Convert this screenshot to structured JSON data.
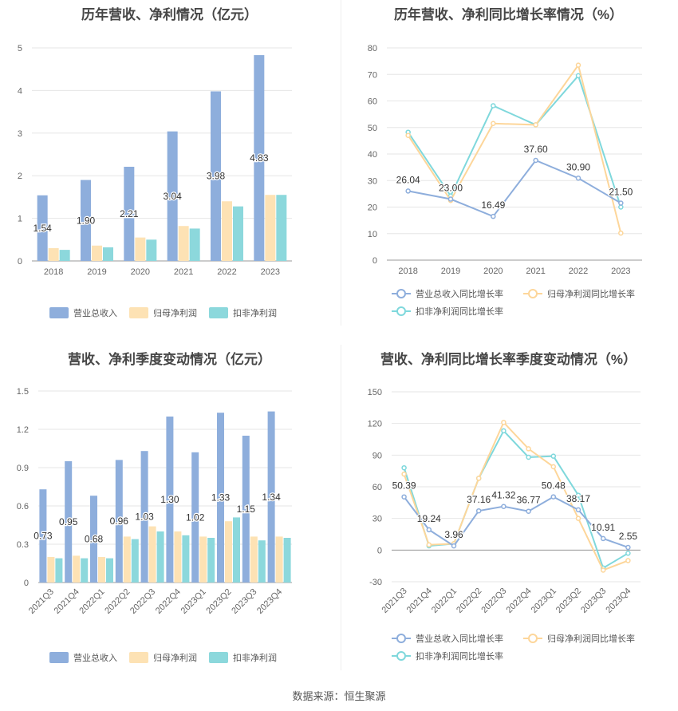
{
  "source": "数据来源：恒生聚源",
  "legend_labels": {
    "revenue": "营业总收入",
    "net_profit": "归母净利润",
    "deducted_profit": "扣非净利润",
    "revenue_growth": "营业总收入同比增长率",
    "net_profit_growth": "归母净利润同比增长率",
    "deducted_profit_growth": "扣非净利润同比增长率"
  },
  "colors": {
    "blue": "#8eaedc",
    "orange": "#fde2b4",
    "teal": "#8cd8dc",
    "blue_line": "#8eaedc",
    "orange_line": "#fdd69a",
    "teal_line": "#7fd8dc"
  },
  "chart_data": [
    {
      "id": "annual-bar",
      "type": "bar",
      "title": "历年营收、净利情况（亿元）",
      "categories": [
        "2018",
        "2019",
        "2020",
        "2021",
        "2022",
        "2023"
      ],
      "ylim": [
        0,
        5
      ],
      "yticks": [
        0,
        1,
        2,
        3,
        4,
        5
      ],
      "series": [
        {
          "name": "营业总收入",
          "values": [
            1.54,
            1.9,
            2.21,
            3.04,
            3.98,
            4.83
          ],
          "labels": [
            "1.54",
            "1.90",
            "2.21",
            "3.04",
            "3.98",
            "4.83"
          ]
        },
        {
          "name": "归母净利润",
          "values": [
            0.3,
            0.36,
            0.55,
            0.82,
            1.4,
            1.55
          ]
        },
        {
          "name": "扣非净利润",
          "values": [
            0.26,
            0.32,
            0.5,
            0.76,
            1.28,
            1.55
          ]
        }
      ]
    },
    {
      "id": "annual-line",
      "type": "line",
      "title": "历年营收、净利同比增长率情况（%）",
      "categories": [
        "2018",
        "2019",
        "2020",
        "2021",
        "2022",
        "2023"
      ],
      "ylim": [
        0,
        80
      ],
      "yticks": [
        0,
        10,
        20,
        30,
        40,
        50,
        60,
        70,
        80
      ],
      "series": [
        {
          "name": "营业总收入同比增长率",
          "values": [
            26.04,
            23.0,
            16.49,
            37.6,
            30.9,
            21.5
          ],
          "labels": [
            "26.04",
            "23.00",
            "16.49",
            "37.60",
            "30.90",
            "21.50"
          ]
        },
        {
          "name": "归母净利润同比增长率",
          "values": [
            47.0,
            22.5,
            51.5,
            51.0,
            73.5,
            10.2
          ]
        },
        {
          "name": "扣非净利润同比增长率",
          "values": [
            48.2,
            24.2,
            58.2,
            51.0,
            69.5,
            20.0
          ]
        }
      ]
    },
    {
      "id": "quarter-bar",
      "type": "bar",
      "title": "营收、净利季度变动情况（亿元）",
      "categories": [
        "2021Q3",
        "2021Q4",
        "2022Q1",
        "2022Q2",
        "2022Q3",
        "2022Q4",
        "2023Q1",
        "2023Q2",
        "2023Q3",
        "2023Q4"
      ],
      "ylim": [
        0,
        1.5
      ],
      "yticks": [
        0,
        0.3,
        0.6,
        0.9,
        1.2,
        1.5
      ],
      "series": [
        {
          "name": "营业总收入",
          "values": [
            0.73,
            0.95,
            0.68,
            0.96,
            1.03,
            1.3,
            1.02,
            1.33,
            1.15,
            1.34
          ],
          "labels": [
            "0.73",
            "0.95",
            "0.68",
            "0.96",
            "1.03",
            "1.30",
            "1.02",
            "1.33",
            "1.15",
            "1.34"
          ]
        },
        {
          "name": "归母净利润",
          "values": [
            0.2,
            0.21,
            0.2,
            0.36,
            0.44,
            0.4,
            0.36,
            0.48,
            0.36,
            0.36
          ]
        },
        {
          "name": "扣非净利润",
          "values": [
            0.19,
            0.19,
            0.19,
            0.34,
            0.4,
            0.37,
            0.35,
            0.51,
            0.33,
            0.35
          ]
        }
      ]
    },
    {
      "id": "quarter-line",
      "type": "line",
      "title": "营收、净利同比增长率季度变动情况（%）",
      "categories": [
        "2021Q3",
        "2021Q4",
        "2022Q1",
        "2022Q2",
        "2022Q3",
        "2022Q4",
        "2023Q1",
        "2023Q2",
        "2023Q3",
        "2023Q4"
      ],
      "ylim": [
        -30,
        150
      ],
      "yticks": [
        -30,
        0,
        30,
        60,
        90,
        120,
        150
      ],
      "series": [
        {
          "name": "营业总收入同比增长率",
          "values": [
            50.39,
            19.24,
            3.96,
            37.16,
            41.32,
            36.77,
            50.48,
            38.17,
            10.91,
            2.55
          ],
          "labels": [
            "50.39",
            "19.24",
            "3.96",
            "37.16",
            "41.32",
            "36.77",
            "50.48",
            "38.17",
            "10.91",
            "2.55"
          ]
        },
        {
          "name": "归母净利润同比增长率",
          "values": [
            72,
            5,
            6,
            68,
            121,
            96,
            79,
            30,
            -19,
            -10
          ]
        },
        {
          "name": "扣非净利润同比增长率",
          "values": [
            78,
            4,
            6,
            68,
            113,
            88,
            89,
            52,
            -17,
            -3
          ]
        }
      ]
    }
  ]
}
